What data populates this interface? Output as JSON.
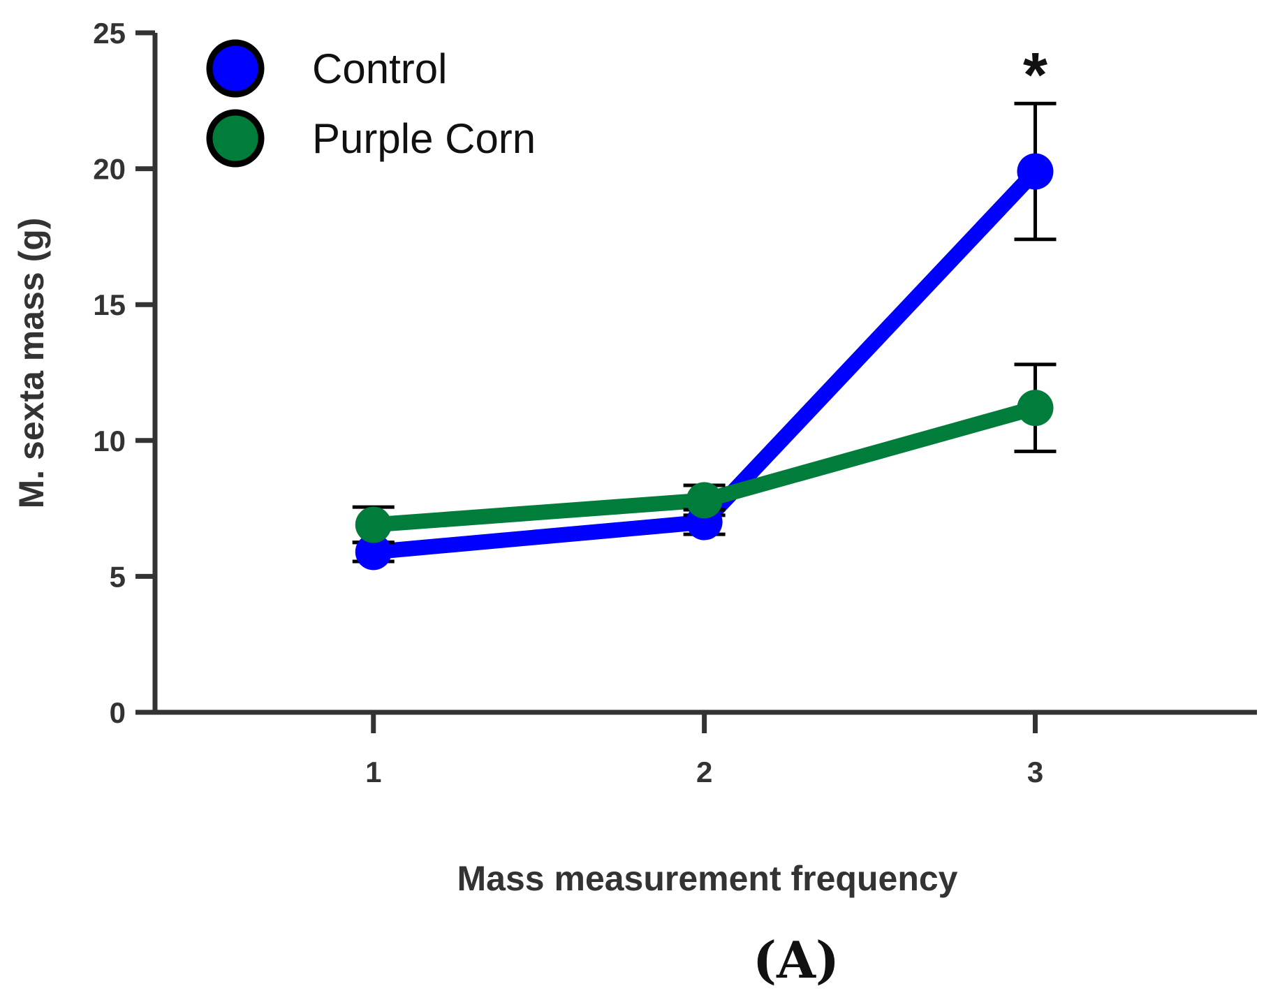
{
  "chart_data": {
    "type": "line",
    "xlabel": "Mass measurement frequency",
    "ylabel": "M. sexta mass (g)",
    "x": [
      1,
      2,
      3
    ],
    "x_tick_labels": [
      "1",
      "2",
      "3"
    ],
    "y_tick_labels": [
      "0",
      "5",
      "10",
      "15",
      "20",
      "25"
    ],
    "xlim": [
      0.34,
      3.67
    ],
    "ylim": [
      0,
      25
    ],
    "grid": false,
    "legend_position": "top-left",
    "series": [
      {
        "name": "Control",
        "color": "#0000ff",
        "values": [
          5.9,
          7.0,
          19.9
        ],
        "error": [
          0.35,
          0.45,
          2.5
        ]
      },
      {
        "name": "Purple Corn",
        "color": "#007d3a",
        "values": [
          6.9,
          7.8,
          11.2
        ],
        "error": [
          0.65,
          0.55,
          1.6
        ]
      }
    ],
    "annotations": [
      {
        "text": "*",
        "x": 3,
        "series": "Control"
      }
    ],
    "panel_label": "(A)"
  }
}
